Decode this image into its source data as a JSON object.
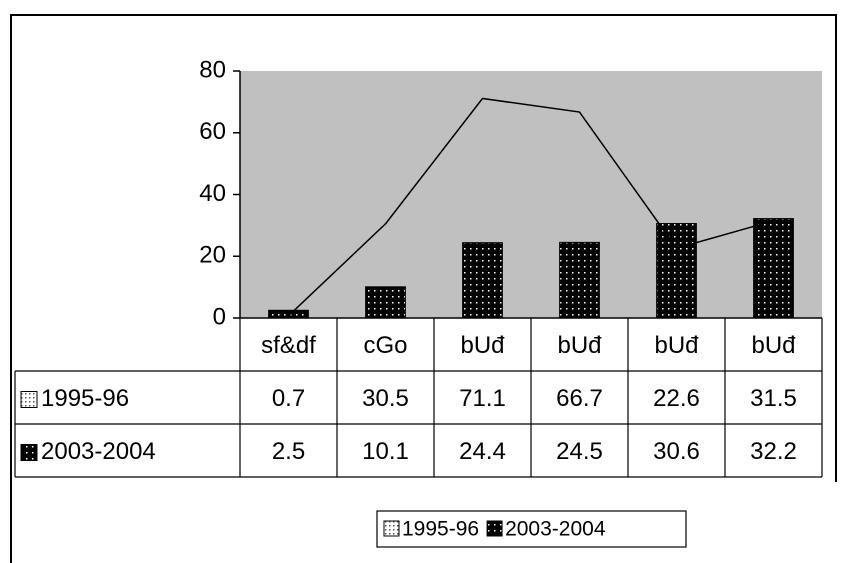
{
  "chart_data": {
    "type": "bar",
    "categories": [
      "sf&df",
      "cGo",
      "bUđ",
      "bUđ",
      "bUđ",
      "bUđ"
    ],
    "series": [
      {
        "name": "1995-96",
        "type": "line",
        "color": "#000000",
        "values": [
          0.7,
          30.5,
          71.1,
          66.7,
          22.6,
          31.5
        ]
      },
      {
        "name": "2003-2004",
        "type": "bar",
        "color": "#000000",
        "values": [
          2.5,
          10.1,
          24.4,
          24.5,
          30.6,
          32.2
        ]
      }
    ],
    "ylim": [
      0,
      80
    ],
    "yticks": [
      0,
      20,
      40,
      60,
      80
    ],
    "plot_background": "#c0c0c0",
    "data_table": true,
    "legend": "bottom"
  }
}
